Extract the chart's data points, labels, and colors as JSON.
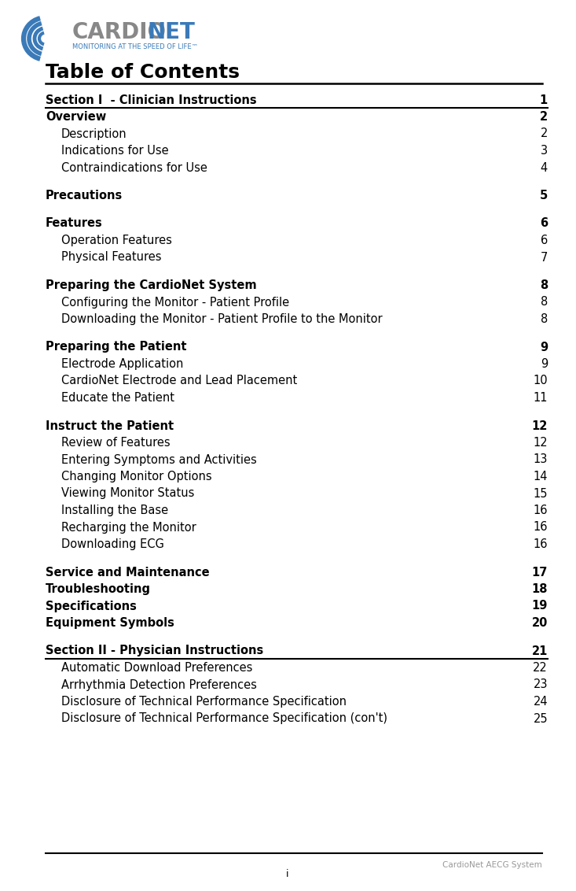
{
  "title": "Table of Contents",
  "bg_color": "#ffffff",
  "title_color": "#000000",
  "text_color": "#000000",
  "page_num_color": "#000000",
  "footer_text": "CardioNet AECG System",
  "footer_page": "i",
  "logo_color_gray": "#888888",
  "logo_color_blue": "#3a7ab8",
  "logo_subtitle_color": "#3a7ab8",
  "footer_text_color": "#999999",
  "entries": [
    {
      "text": "Section I  - Clinician Instructions",
      "page": "1",
      "bold": true,
      "indent": 0,
      "underline": true,
      "space_before": 0
    },
    {
      "text": "Overview",
      "page": "2",
      "bold": true,
      "indent": 0,
      "underline": false,
      "space_before": 0
    },
    {
      "text": "Description",
      "page": "2",
      "bold": false,
      "indent": 1,
      "underline": false,
      "space_before": 0
    },
    {
      "text": "Indications for Use",
      "page": "3",
      "bold": false,
      "indent": 1,
      "underline": false,
      "space_before": 0
    },
    {
      "text": "Contraindications for Use",
      "page": "4",
      "bold": false,
      "indent": 1,
      "underline": false,
      "space_before": 0
    },
    {
      "text": "Precautions",
      "page": "5",
      "bold": true,
      "indent": 0,
      "underline": false,
      "space_before": 14
    },
    {
      "text": "Features",
      "page": "6",
      "bold": true,
      "indent": 0,
      "underline": false,
      "space_before": 14
    },
    {
      "text": "Operation Features",
      "page": "6",
      "bold": false,
      "indent": 1,
      "underline": false,
      "space_before": 0
    },
    {
      "text": "Physical Features",
      "page": "7",
      "bold": false,
      "indent": 1,
      "underline": false,
      "space_before": 0
    },
    {
      "text": "Preparing the CardioNet System",
      "page": "8",
      "bold": true,
      "indent": 0,
      "underline": false,
      "space_before": 14
    },
    {
      "text": "Configuring the Monitor - Patient Profile",
      "page": "8",
      "bold": false,
      "indent": 1,
      "underline": false,
      "space_before": 0
    },
    {
      "text": "Downloading the Monitor - Patient Profile to the Monitor",
      "page": "8",
      "bold": false,
      "indent": 1,
      "underline": false,
      "space_before": 0
    },
    {
      "text": "Preparing the Patient",
      "page": "9",
      "bold": true,
      "indent": 0,
      "underline": false,
      "space_before": 14
    },
    {
      "text": "Electrode Application",
      "page": "9",
      "bold": false,
      "indent": 1,
      "underline": false,
      "space_before": 0
    },
    {
      "text": "CardioNet Electrode and Lead Placement",
      "page": "10",
      "bold": false,
      "indent": 1,
      "underline": false,
      "space_before": 0
    },
    {
      "text": "Educate the Patient",
      "page": "11",
      "bold": false,
      "indent": 1,
      "underline": false,
      "space_before": 0
    },
    {
      "text": "Instruct the Patient",
      "page": "12",
      "bold": true,
      "indent": 0,
      "underline": false,
      "space_before": 14
    },
    {
      "text": "Review of Features",
      "page": "12",
      "bold": false,
      "indent": 1,
      "underline": false,
      "space_before": 0
    },
    {
      "text": "Entering Symptoms and Activities",
      "page": "13",
      "bold": false,
      "indent": 1,
      "underline": false,
      "space_before": 0
    },
    {
      "text": "Changing Monitor Options",
      "page": "14",
      "bold": false,
      "indent": 1,
      "underline": false,
      "space_before": 0
    },
    {
      "text": "Viewing Monitor Status",
      "page": "15",
      "bold": false,
      "indent": 1,
      "underline": false,
      "space_before": 0
    },
    {
      "text": "Installing the Base",
      "page": "16",
      "bold": false,
      "indent": 1,
      "underline": false,
      "space_before": 0
    },
    {
      "text": "Recharging the Monitor",
      "page": "16",
      "bold": false,
      "indent": 1,
      "underline": false,
      "space_before": 0
    },
    {
      "text": "Downloading ECG",
      "page": "16",
      "bold": false,
      "indent": 1,
      "underline": false,
      "space_before": 0
    },
    {
      "text": "Service and Maintenance",
      "page": "17",
      "bold": true,
      "indent": 0,
      "underline": false,
      "space_before": 14
    },
    {
      "text": "Troubleshooting",
      "page": "18",
      "bold": true,
      "indent": 0,
      "underline": false,
      "space_before": 0
    },
    {
      "text": "Specifications",
      "page": "19",
      "bold": true,
      "indent": 0,
      "underline": false,
      "space_before": 0
    },
    {
      "text": "Equipment Symbols",
      "page": "20",
      "bold": true,
      "indent": 0,
      "underline": false,
      "space_before": 0
    },
    {
      "text": "Section II - Physician Instructions",
      "page": "21",
      "bold": true,
      "indent": 0,
      "underline": true,
      "space_before": 14
    },
    {
      "text": "Automatic Download Preferences",
      "page": "22",
      "bold": false,
      "indent": 1,
      "underline": false,
      "space_before": 0
    },
    {
      "text": "Arrhythmia Detection Preferences",
      "page": "23",
      "bold": false,
      "indent": 1,
      "underline": false,
      "space_before": 0
    },
    {
      "text": "Disclosure of Technical Performance Specification",
      "page": "24",
      "bold": false,
      "indent": 1,
      "underline": false,
      "space_before": 0
    },
    {
      "text": "Disclosure of Technical Performance Specification (con't)",
      "page": "25",
      "bold": false,
      "indent": 1,
      "underline": false,
      "space_before": 0
    }
  ]
}
